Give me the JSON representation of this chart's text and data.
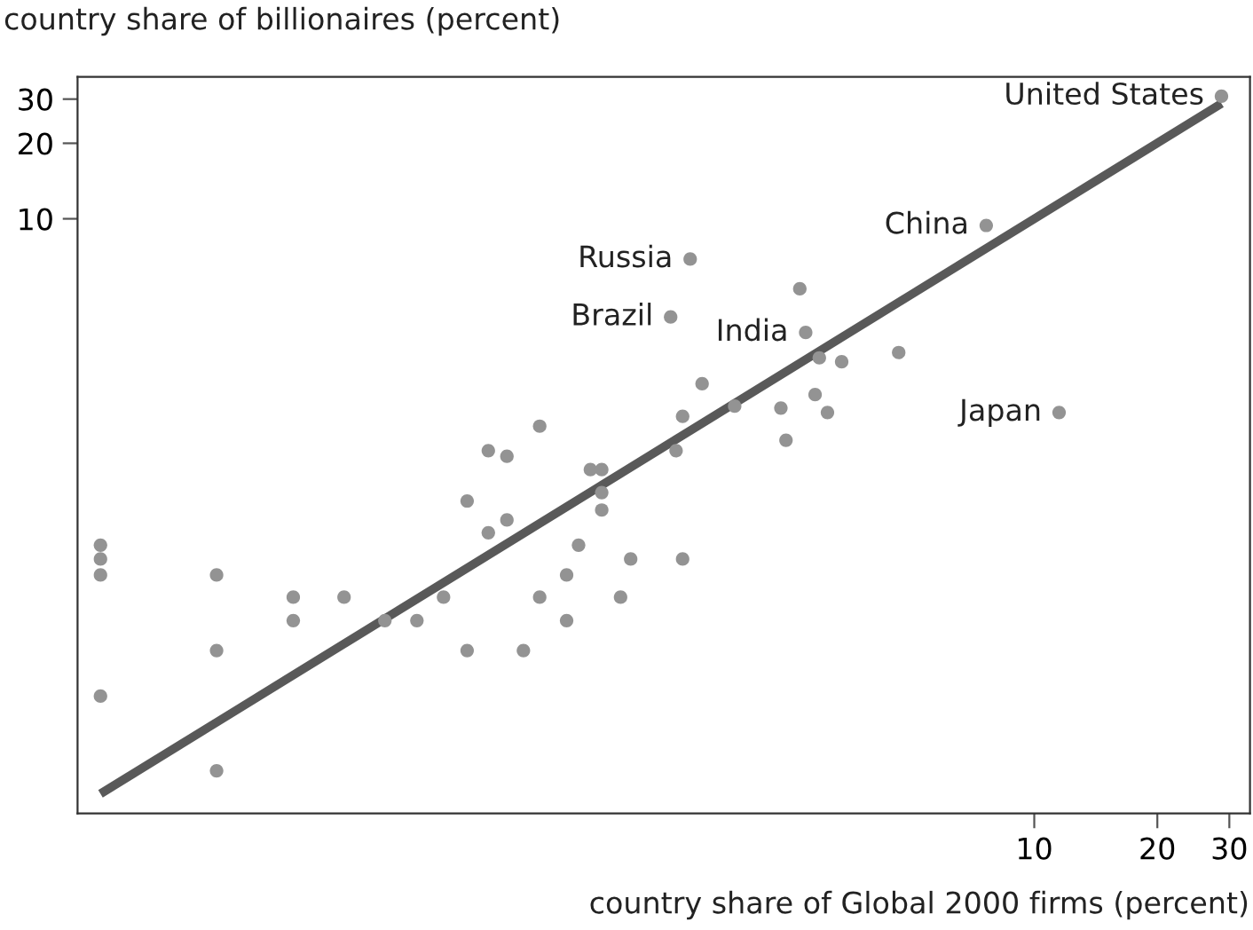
{
  "chart_data": {
    "type": "scatter",
    "title": "country share of billionaires (percent)",
    "xlabel": "country share of Global 2000 firms (percent)",
    "log": "xy",
    "xlim": [
      0.0457,
      33.7
    ],
    "ylim": [
      0.0426,
      36.8
    ],
    "xticks": [
      10,
      20,
      30
    ],
    "yticks": [
      10,
      20,
      30
    ],
    "grid": false,
    "legend": false,
    "series": [
      {
        "marker": "circle",
        "color": "#939393",
        "x": [
          0.052,
          0.052,
          0.052,
          0.052,
          0.1,
          0.1,
          0.1,
          0.154,
          0.154,
          0.205,
          0.258,
          0.309,
          0.359,
          0.41,
          0.41,
          0.462,
          0.462,
          0.513,
          0.513,
          0.563,
          0.617,
          0.617,
          0.718,
          0.718,
          0.768,
          0.821,
          0.875,
          0.875,
          0.875,
          0.973,
          1.03,
          1.33,
          1.38,
          1.38,
          1.54,
          1.85,
          2.4,
          2.47,
          2.91,
          3.12,
          2.98,
          3.38,
          2.67,
          4.66,
          1.44,
          1.29,
          2.76,
          7.63,
          11.5,
          28.7
        ],
        "values": [
          0.5,
          0.44,
          0.38,
          0.125,
          0.38,
          0.19,
          0.063,
          0.31,
          0.25,
          0.31,
          0.25,
          0.25,
          0.31,
          0.75,
          0.19,
          1.19,
          0.56,
          1.13,
          0.63,
          0.19,
          1.49,
          0.31,
          0.38,
          0.25,
          0.5,
          1.0,
          1.0,
          0.81,
          0.69,
          0.31,
          0.44,
          1.19,
          0.44,
          1.63,
          2.2,
          1.79,
          1.76,
          1.31,
          1.99,
          1.69,
          2.79,
          2.69,
          5.26,
          2.93,
          6.91,
          4.06,
          3.52,
          9.41,
          1.69,
          30.8
        ]
      },
      {
        "type": "line",
        "marker": "none",
        "color": "#595959",
        "line_style": "solid",
        "x": [
          0.052,
          28.7
        ],
        "values": [
          0.051,
          28.8
        ]
      }
    ],
    "annotations": [
      {
        "text": "Russia",
        "x": 1.44,
        "y": 6.91
      },
      {
        "text": "Brazil",
        "x": 1.29,
        "y": 4.06
      },
      {
        "text": "India",
        "x": 2.76,
        "y": 3.52
      },
      {
        "text": "China",
        "x": 7.63,
        "y": 9.41
      },
      {
        "text": "Japan",
        "x": 11.5,
        "y": 1.69
      },
      {
        "text": "United States",
        "x": 28.7,
        "y": 30.8
      }
    ]
  }
}
